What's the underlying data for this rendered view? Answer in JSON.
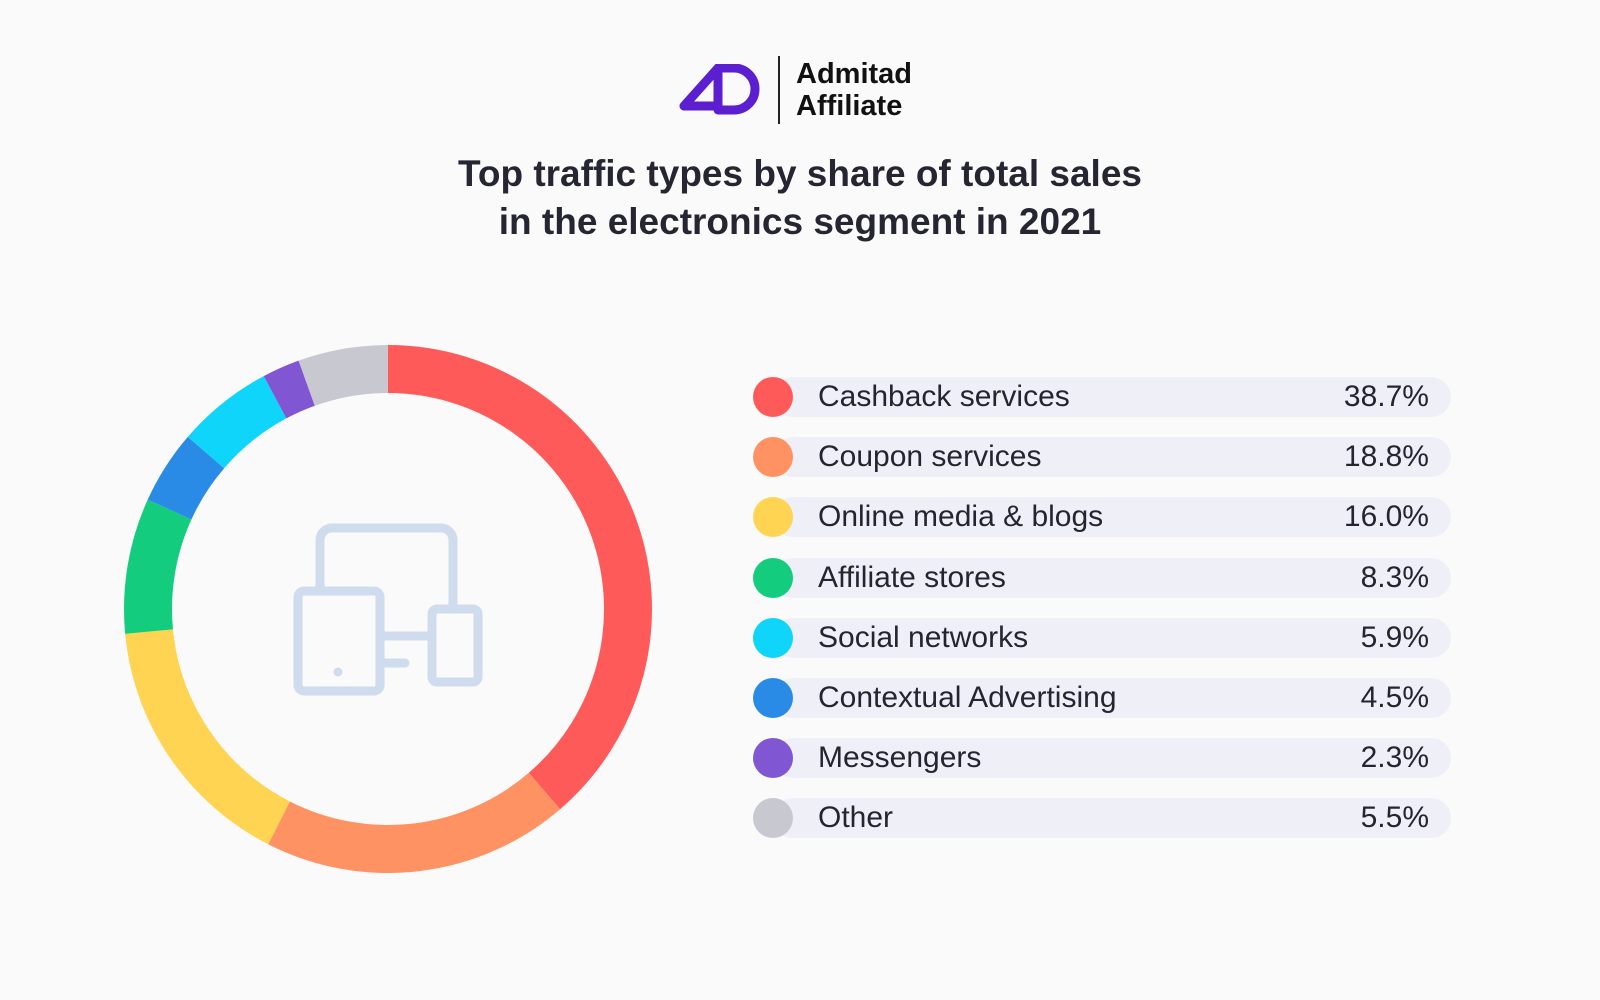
{
  "logo": {
    "line1": "Admitad",
    "line2": "Affiliate",
    "mark": "AD",
    "color": "#5b1fd0"
  },
  "chart_data": {
    "type": "pie",
    "style": "donut",
    "title": [
      "Top traffic types by share of total sales",
      "in the electronics segment in 2021"
    ],
    "center_icon": "devices-icon",
    "legend_position": "right",
    "series": [
      {
        "name": "Cashback services",
        "value": 38.7,
        "label": "38.7%",
        "color": "#ff5a5a"
      },
      {
        "name": "Coupon services",
        "value": 18.8,
        "label": "18.8%",
        "color": "#ff9262"
      },
      {
        "name": "Online media & blogs",
        "value": 16.0,
        "label": "16.0%",
        "color": "#ffd452"
      },
      {
        "name": "Affiliate stores",
        "value": 8.3,
        "label": "8.3%",
        "color": "#13cc7e"
      },
      {
        "name": "Social networks",
        "value": 5.9,
        "label": "5.9%",
        "color": "#0fd5fb"
      },
      {
        "name": "Contextual Advertising",
        "value": 4.5,
        "label": "4.5%",
        "color": "#2a8be6"
      },
      {
        "name": "Messengers",
        "value": 2.3,
        "label": "2.3%",
        "color": "#8156d2"
      },
      {
        "name": "Other",
        "value": 5.5,
        "label": "5.5%",
        "color": "#c8c8d0"
      }
    ],
    "donut_order": [
      "Cashback services",
      "Coupon services",
      "Online media & blogs",
      "Affiliate stores",
      "Contextual Advertising",
      "Social networks",
      "Messengers",
      "Other"
    ]
  }
}
